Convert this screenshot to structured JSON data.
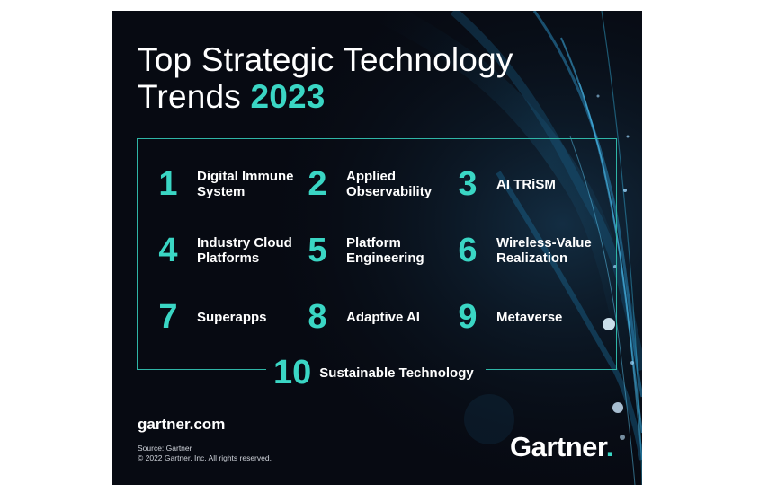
{
  "title": {
    "line1": "Top Strategic Technology",
    "line2_prefix": "Trends ",
    "year": "2023"
  },
  "trends": [
    {
      "number": "1",
      "line1": "Digital Immune",
      "line2": "System"
    },
    {
      "number": "2",
      "line1": "Applied",
      "line2": "Observability"
    },
    {
      "number": "3",
      "line1": "AI TRiSM",
      "line2": ""
    },
    {
      "number": "4",
      "line1": "Industry Cloud",
      "line2": "Platforms"
    },
    {
      "number": "5",
      "line1": "Platform",
      "line2": "Engineering"
    },
    {
      "number": "6",
      "line1": "Wireless-Value",
      "line2": "Realization"
    },
    {
      "number": "7",
      "line1": "Superapps",
      "line2": ""
    },
    {
      "number": "8",
      "line1": "Adaptive AI",
      "line2": ""
    },
    {
      "number": "9",
      "line1": "Metaverse",
      "line2": ""
    },
    {
      "number": "10",
      "line1": "Sustainable Technology",
      "line2": ""
    }
  ],
  "footer": {
    "website": "gartner.com",
    "source": "Source: Gartner",
    "copyright": "© 2022 Gartner, Inc. All rights reserved.",
    "logo_text": "Gartner",
    "logo_dot": "."
  },
  "colors": {
    "accent": "#3ad6c4",
    "background": "#070a12",
    "text": "#ffffff"
  }
}
